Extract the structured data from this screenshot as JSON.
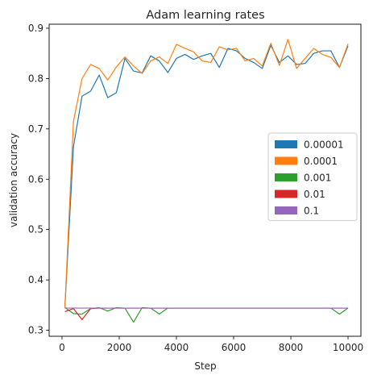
{
  "chart_data": {
    "type": "line",
    "title": "Adam learning rates",
    "xlabel": "Step",
    "ylabel": "validation accuracy",
    "xlim": [
      -450,
      10450
    ],
    "ylim": [
      0.288,
      0.908
    ],
    "xticks": [
      0,
      2000,
      4000,
      6000,
      8000,
      10000
    ],
    "xtick_labels": [
      "0",
      "2000",
      "4000",
      "6000",
      "8000",
      "10000"
    ],
    "yticks": [
      0.3,
      0.4,
      0.5,
      0.6,
      0.7,
      0.8,
      0.9
    ],
    "ytick_labels": [
      "0.3",
      "0.4",
      "0.5",
      "0.6",
      "0.7",
      "0.8",
      "0.9"
    ],
    "grid": false,
    "legend_position": "center-right",
    "x": [
      100,
      400,
      700,
      1000,
      1300,
      1600,
      1900,
      2200,
      2500,
      2800,
      3100,
      3400,
      3700,
      4000,
      4300,
      4600,
      4900,
      5200,
      5500,
      5800,
      6100,
      6400,
      6700,
      7000,
      7300,
      7600,
      7900,
      8200,
      8500,
      8800,
      9100,
      9400,
      9700,
      10000
    ],
    "series": [
      {
        "name": "0.00001",
        "color": "#1f77b4",
        "values": [
          0.345,
          0.665,
          0.765,
          0.775,
          0.807,
          0.762,
          0.772,
          0.84,
          0.815,
          0.811,
          0.845,
          0.835,
          0.812,
          0.84,
          0.848,
          0.838,
          0.845,
          0.85,
          0.822,
          0.86,
          0.855,
          0.84,
          0.832,
          0.82,
          0.866,
          0.832,
          0.845,
          0.828,
          0.83,
          0.85,
          0.855,
          0.855,
          0.822,
          0.865
        ]
      },
      {
        "name": "0.0001",
        "color": "#ff7f0e",
        "values": [
          0.345,
          0.715,
          0.8,
          0.828,
          0.82,
          0.797,
          0.823,
          0.843,
          0.825,
          0.81,
          0.835,
          0.843,
          0.83,
          0.868,
          0.86,
          0.853,
          0.835,
          0.832,
          0.863,
          0.857,
          0.86,
          0.835,
          0.84,
          0.825,
          0.87,
          0.826,
          0.878,
          0.82,
          0.84,
          0.86,
          0.848,
          0.842,
          0.822,
          0.869
        ]
      },
      {
        "name": "0.001",
        "color": "#2ca02c",
        "values": [
          0.345,
          0.333,
          0.332,
          0.343,
          0.345,
          0.338,
          0.345,
          0.344,
          0.316,
          0.345,
          0.344,
          0.332,
          0.344,
          0.344,
          0.344,
          0.344,
          0.344,
          0.344,
          0.344,
          0.344,
          0.344,
          0.344,
          0.344,
          0.344,
          0.344,
          0.344,
          0.344,
          0.344,
          0.344,
          0.344,
          0.344,
          0.344,
          0.332,
          0.344
        ]
      },
      {
        "name": "0.01",
        "color": "#d62728",
        "values": [
          0.337,
          0.343,
          0.321,
          0.343,
          0.344,
          0.344,
          0.344,
          0.344,
          0.344,
          0.344,
          0.344,
          0.344,
          0.344,
          0.344,
          0.344,
          0.344,
          0.344,
          0.344,
          0.344,
          0.344,
          0.344,
          0.344,
          0.344,
          0.344,
          0.344,
          0.344,
          0.344,
          0.344,
          0.344,
          0.344,
          0.344,
          0.344,
          0.344,
          0.344
        ]
      },
      {
        "name": "0.1",
        "color": "#9467bd",
        "values": [
          0.344,
          0.344,
          0.344,
          0.344,
          0.344,
          0.344,
          0.344,
          0.344,
          0.344,
          0.344,
          0.344,
          0.344,
          0.344,
          0.344,
          0.344,
          0.344,
          0.344,
          0.344,
          0.344,
          0.344,
          0.344,
          0.344,
          0.344,
          0.344,
          0.344,
          0.344,
          0.344,
          0.344,
          0.344,
          0.344,
          0.344,
          0.344,
          0.344,
          0.344
        ]
      }
    ]
  }
}
